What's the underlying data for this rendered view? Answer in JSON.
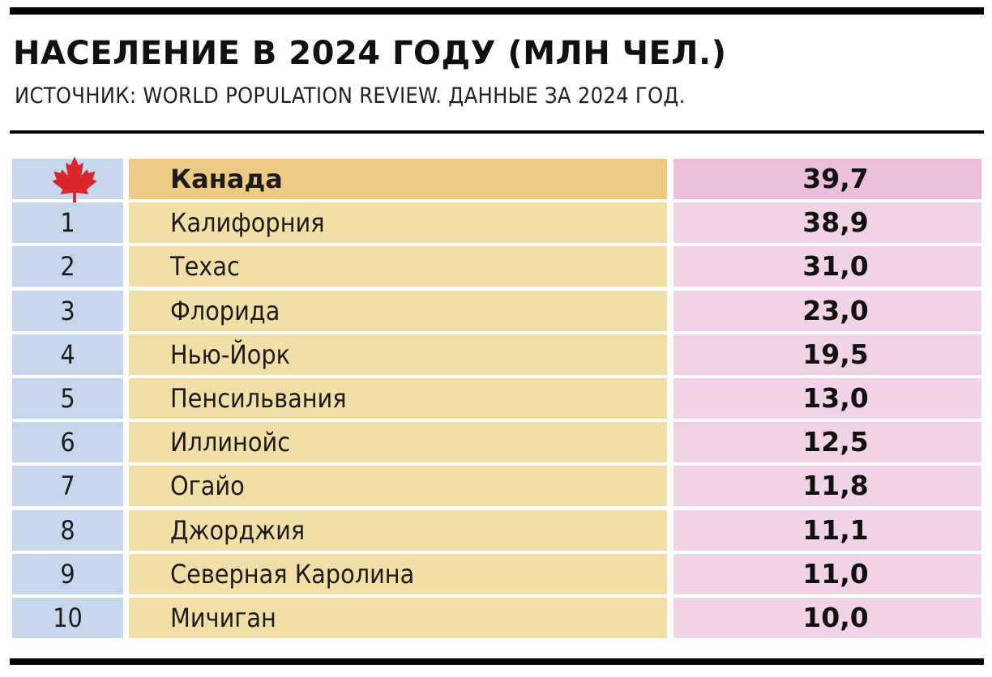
{
  "title": "НАСЕЛЕНИЕ В 2024 ГОДУ (МЛН ЧЕЛ.)",
  "subtitle": "ИСТОЧНИК: WORLD POPULATION REVIEW. ДАННЫЕ ЗА 2024 ГОД.",
  "colors": {
    "rank_column": "#c8d6ec",
    "name_column": "#f2dfa8",
    "value_column": "#f0d3e4",
    "highlight_name": "#ecca84",
    "highlight_value": "#ebbfd9",
    "flag_red": "#d8262c"
  },
  "chart_data": {
    "type": "table",
    "title": "НАСЕЛЕНИЕ В 2024 ГОДУ (МЛН ЧЕЛ.)",
    "subtitle": "ИСТОЧНИК: WORLD POPULATION REVIEW. ДАННЫЕ ЗА 2024 ГОД.",
    "rows": [
      {
        "rank": "",
        "rank_icon": "maple-leaf-icon",
        "name": "Канада",
        "value": "39,7",
        "highlight": true
      },
      {
        "rank": "1",
        "name": "Калифорния",
        "value": "38,9"
      },
      {
        "rank": "2",
        "name": "Техас",
        "value": "31,0"
      },
      {
        "rank": "3",
        "name": "Флорида",
        "value": "23,0"
      },
      {
        "rank": "4",
        "name": "Нью-Йорк",
        "value": "19,5"
      },
      {
        "rank": "5",
        "name": "Пенсильвания",
        "value": "13,0"
      },
      {
        "rank": "6",
        "name": "Иллинойс",
        "value": "12,5"
      },
      {
        "rank": "7",
        "name": "Огайо",
        "value": "11,8"
      },
      {
        "rank": "8",
        "name": "Джорджия",
        "value": "11,1"
      },
      {
        "rank": "9",
        "name": "Северная Каролина",
        "value": "11,0"
      },
      {
        "rank": "10",
        "name": "Мичиган",
        "value": "10,0"
      }
    ]
  }
}
